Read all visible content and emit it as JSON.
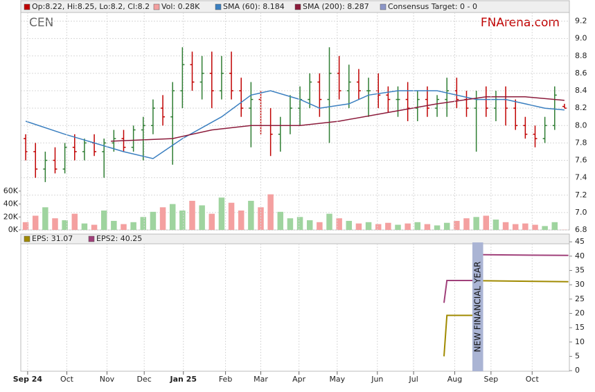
{
  "chart_data": [
    {
      "type": "ohlc",
      "title": "CEN",
      "watermark": "FNArena.com",
      "legend": [
        {
          "label": "Op:8.22, Hi:8.25, Lo:8.2, Cl:8.2",
          "color": "#c00000"
        },
        {
          "label": "Vol: 0.28K",
          "color": "#f4a0a0"
        },
        {
          "label": "SMA (60): 8.184",
          "color": "#3a7fc0"
        },
        {
          "label": "SMA (200): 8.287",
          "color": "#8b1a3a"
        },
        {
          "label": "Consensus Target: 0 - 0",
          "color": "#8c96c8"
        }
      ],
      "up_color": "#2e7d32",
      "down_color": "#c00000",
      "vol_up_color": "#9fd49f",
      "vol_down_color": "#f4a0a0",
      "ohlc": [
        [
          7.85,
          7.9,
          7.6,
          7.7
        ],
        [
          7.7,
          7.8,
          7.4,
          7.5
        ],
        [
          7.5,
          7.7,
          7.35,
          7.6
        ],
        [
          7.6,
          7.75,
          7.45,
          7.5
        ],
        [
          7.5,
          7.8,
          7.45,
          7.75
        ],
        [
          7.75,
          7.9,
          7.6,
          7.7
        ],
        [
          7.7,
          7.85,
          7.6,
          7.8
        ],
        [
          7.8,
          7.9,
          7.65,
          7.7
        ],
        [
          7.7,
          7.85,
          7.4,
          7.8
        ],
        [
          7.8,
          7.95,
          7.7,
          7.85
        ],
        [
          7.85,
          7.95,
          7.7,
          7.75
        ],
        [
          7.75,
          8.0,
          7.7,
          7.95
        ],
        [
          7.95,
          8.1,
          7.6,
          8.0
        ],
        [
          8.0,
          8.3,
          7.9,
          8.2
        ],
        [
          8.2,
          8.35,
          8.0,
          8.1
        ],
        [
          8.1,
          8.5,
          7.55,
          8.4
        ],
        [
          8.4,
          8.9,
          8.2,
          8.7
        ],
        [
          8.7,
          8.85,
          8.4,
          8.5
        ],
        [
          8.5,
          8.8,
          8.3,
          8.6
        ],
        [
          8.6,
          8.85,
          8.2,
          8.4
        ],
        [
          8.4,
          8.8,
          8.3,
          8.6
        ],
        [
          8.6,
          8.85,
          8.3,
          8.4
        ],
        [
          8.4,
          8.55,
          8.1,
          8.2
        ],
        [
          8.2,
          8.5,
          7.75,
          8.3
        ],
        [
          8.3,
          8.4,
          7.9,
          8.0
        ],
        [
          8.0,
          8.2,
          7.65,
          7.9
        ],
        [
          7.9,
          8.1,
          7.7,
          8.0
        ],
        [
          8.0,
          8.35,
          7.9,
          8.2
        ],
        [
          8.2,
          8.45,
          8.0,
          8.3
        ],
        [
          8.3,
          8.6,
          8.2,
          8.5
        ],
        [
          8.5,
          8.6,
          8.1,
          8.3
        ],
        [
          8.3,
          8.9,
          7.8,
          8.6
        ],
        [
          8.6,
          8.8,
          8.3,
          8.4
        ],
        [
          8.4,
          8.7,
          8.2,
          8.5
        ],
        [
          8.5,
          8.65,
          8.3,
          8.4
        ],
        [
          8.4,
          8.55,
          8.1,
          8.4
        ],
        [
          8.4,
          8.6,
          8.2,
          8.35
        ],
        [
          8.35,
          8.45,
          8.15,
          8.3
        ],
        [
          8.3,
          8.45,
          8.1,
          8.3
        ],
        [
          8.3,
          8.5,
          8.05,
          8.2
        ],
        [
          8.2,
          8.4,
          8.05,
          8.3
        ],
        [
          8.3,
          8.45,
          8.1,
          8.2
        ],
        [
          8.2,
          8.35,
          8.1,
          8.3
        ],
        [
          8.3,
          8.55,
          8.1,
          8.4
        ],
        [
          8.4,
          8.55,
          8.2,
          8.3
        ],
        [
          8.3,
          8.4,
          8.1,
          8.2
        ],
        [
          8.2,
          8.4,
          7.7,
          8.3
        ],
        [
          8.3,
          8.45,
          8.1,
          8.2
        ],
        [
          8.2,
          8.4,
          8.05,
          8.3
        ],
        [
          8.3,
          8.45,
          8.0,
          8.2
        ],
        [
          8.2,
          8.3,
          7.95,
          8.0
        ],
        [
          8.0,
          8.1,
          7.85,
          7.9
        ],
        [
          7.9,
          8.0,
          7.75,
          7.85
        ],
        [
          7.85,
          8.1,
          7.8,
          8.0
        ],
        [
          8.0,
          8.45,
          7.95,
          8.35
        ],
        [
          8.22,
          8.25,
          8.2,
          8.2
        ]
      ],
      "volume": [
        12000,
        22000,
        35000,
        18000,
        15000,
        25000,
        10000,
        8000,
        30000,
        14000,
        9000,
        12000,
        20000,
        28000,
        35000,
        40000,
        30000,
        45000,
        38000,
        25000,
        50000,
        42000,
        30000,
        45000,
        35000,
        55000,
        28000,
        18000,
        20000,
        15000,
        12000,
        25000,
        18000,
        14000,
        10000,
        12000,
        9000,
        11000,
        8000,
        10000,
        12000,
        9000,
        7000,
        11000,
        14000,
        18000,
        20000,
        22000,
        16000,
        12000,
        9000,
        10000,
        8000,
        6000,
        12000,
        280
      ],
      "series": [
        {
          "name": "SMA (60)",
          "color": "#3a7fc0",
          "x": [
            0,
            4,
            10,
            13,
            16,
            20,
            23,
            25,
            28,
            30,
            33,
            35,
            38,
            42,
            46,
            49,
            53,
            55
          ],
          "values": [
            8.05,
            7.9,
            7.7,
            7.62,
            7.85,
            8.1,
            8.35,
            8.4,
            8.3,
            8.2,
            8.25,
            8.35,
            8.4,
            8.4,
            8.3,
            8.3,
            8.2,
            8.18
          ]
        },
        {
          "name": "SMA (200)",
          "color": "#8b1a3a",
          "x": [
            8.7,
            15,
            19,
            23,
            28,
            32,
            37,
            42,
            47,
            51,
            55
          ],
          "values": [
            7.82,
            7.85,
            7.95,
            8.0,
            8.0,
            8.05,
            8.15,
            8.25,
            8.33,
            8.33,
            8.29
          ]
        }
      ],
      "xlim": [
        -0.5,
        55.5
      ],
      "ylim": [
        6.8,
        9.3
      ],
      "yticks": [
        6.8,
        {
          "value": 7.0,
          "label": "7.0"
        },
        7.2,
        7.4,
        7.6,
        7.8,
        {
          "value": 8.0,
          "label": "8.0"
        },
        8.2,
        8.4,
        8.6,
        8.8,
        {
          "value": 9.0,
          "label": "9.0"
        },
        9.2
      ],
      "y2lim": [
        0,
        336000
      ],
      "y2ticks": [
        {
          "value": 0,
          "label": "0K"
        },
        {
          "value": 20000,
          "label": "20K"
        },
        {
          "value": 40000,
          "label": "40K"
        },
        {
          "value": 60000,
          "label": "60K"
        }
      ],
      "xticks": [
        {
          "value": 0.2,
          "label": "Sep 24"
        },
        {
          "value": 4.2,
          "label": "Oct"
        },
        {
          "value": 8.3,
          "label": "Nov"
        },
        {
          "value": 12.1,
          "label": "Dec"
        },
        {
          "value": 16.1,
          "label": "Jan 25"
        },
        {
          "value": 20.4,
          "label": "Feb"
        },
        {
          "value": 24.0,
          "label": "Mar"
        },
        {
          "value": 27.9,
          "label": "Apr"
        },
        {
          "value": 31.8,
          "label": "May"
        },
        {
          "value": 35.9,
          "label": "Jun"
        },
        {
          "value": 39.6,
          "label": "Jul"
        },
        {
          "value": 43.8,
          "label": "Aug"
        },
        {
          "value": 47.5,
          "label": "Sep"
        },
        {
          "value": 51.7,
          "label": "Oct"
        }
      ]
    },
    {
      "type": "line",
      "series": [
        {
          "name": "EPS: 31.07",
          "color": "#a08a00",
          "x": [
            42.7,
            43.0,
            45.6,
            46.0,
            46.7,
            55.4
          ],
          "values": [
            5,
            19.3,
            19.3,
            null,
            31.4,
            31.07
          ]
        },
        {
          "name": "EPS2: 40.25",
          "color": "#a0407a",
          "x": [
            42.7,
            43.0,
            45.6,
            46.0,
            46.7,
            55.4
          ],
          "values": [
            23.7,
            31.5,
            31.5,
            null,
            40.5,
            40.25
          ]
        }
      ],
      "annotation": {
        "text": "NEW FINANCIAL YEAR",
        "x": [
          45.6,
          46.7
        ],
        "color": "#aab4d4"
      },
      "xlim": [
        -0.5,
        55.5
      ],
      "ylim": [
        -0.2,
        47.7
      ],
      "yticks": [
        0,
        5,
        10,
        15,
        20,
        25,
        30,
        35,
        40,
        45
      ]
    }
  ]
}
